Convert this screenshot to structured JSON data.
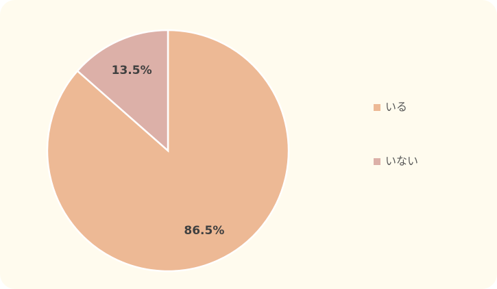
{
  "chart_data": {
    "type": "pie",
    "categories": [
      "いる",
      "いない"
    ],
    "values": [
      86.5,
      13.5
    ],
    "value_labels": [
      "86.5%",
      "13.5%"
    ],
    "colors": [
      "#edb995",
      "#dcb0a8"
    ],
    "legend": "right"
  }
}
